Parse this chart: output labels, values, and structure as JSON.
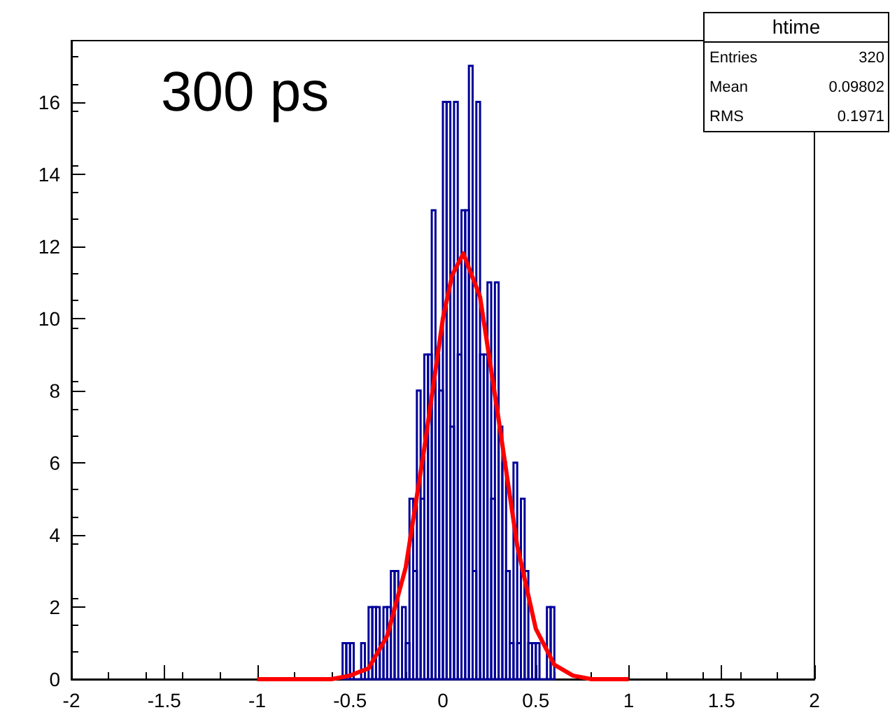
{
  "chart_data": {
    "type": "histogram",
    "series": [
      {
        "color": "#000099",
        "bins": [
          -0.54,
          -0.52,
          -0.5,
          -0.48,
          -0.46,
          -0.44,
          -0.42,
          -0.4,
          -0.38,
          -0.36,
          -0.34,
          -0.32,
          -0.3,
          -0.28,
          -0.26,
          -0.24,
          -0.22,
          -0.2,
          -0.18,
          -0.16,
          -0.14,
          -0.12,
          -0.1,
          -0.08,
          -0.06,
          -0.04,
          -0.02,
          0,
          0.02,
          0.04,
          0.06,
          0.08,
          0.1,
          0.12,
          0.14,
          0.16,
          0.18,
          0.2,
          0.22,
          0.24,
          0.26,
          0.28,
          0.3,
          0.32,
          0.34,
          0.36,
          0.38,
          0.4,
          0.42,
          0.44,
          0.46,
          0.48,
          0.5,
          0.52,
          0.54,
          0.56,
          0.58,
          0.6
        ],
        "values": [
          1,
          1,
          1,
          0,
          0,
          1,
          0,
          2,
          2,
          2,
          1,
          2,
          2,
          3,
          3,
          0,
          2,
          1,
          5,
          3,
          8,
          5,
          9,
          9,
          13,
          9,
          8,
          16,
          16,
          7,
          16,
          9,
          13,
          13,
          17,
          3,
          16,
          9,
          9,
          11,
          5,
          11,
          7,
          6,
          3,
          1,
          6,
          1,
          5,
          3,
          1,
          1,
          1,
          0,
          0,
          2,
          2
        ]
      },
      {
        "type": "line",
        "color": "#ff0000",
        "x": [
          -1,
          -0.8,
          -0.6,
          -0.5,
          -0.4,
          -0.3,
          -0.2,
          -0.1,
          0,
          0.05,
          0.11,
          0.2,
          0.3,
          0.4,
          0.5,
          0.6,
          0.7,
          0.8,
          1
        ],
        "values": [
          0,
          0,
          0,
          0.1,
          0.3,
          1.2,
          3.1,
          6.4,
          10,
          11.2,
          11.8,
          10.6,
          7.2,
          3.7,
          1.4,
          0.4,
          0.1,
          0,
          0
        ]
      }
    ],
    "xlim": [
      -2,
      2
    ],
    "xticks": [
      -2,
      -1.5,
      -1,
      -0.5,
      0,
      0.5,
      1,
      1.5,
      2
    ],
    "ylim": [
      0,
      17.7
    ],
    "yticks": [
      0,
      2,
      4,
      6,
      8,
      10,
      12,
      14,
      16
    ],
    "grid": false,
    "annotations": [
      "300 ps",
      "htime",
      "Entries",
      "320",
      "Mean",
      "0.09802",
      "RMS",
      "0.1971"
    ]
  }
}
